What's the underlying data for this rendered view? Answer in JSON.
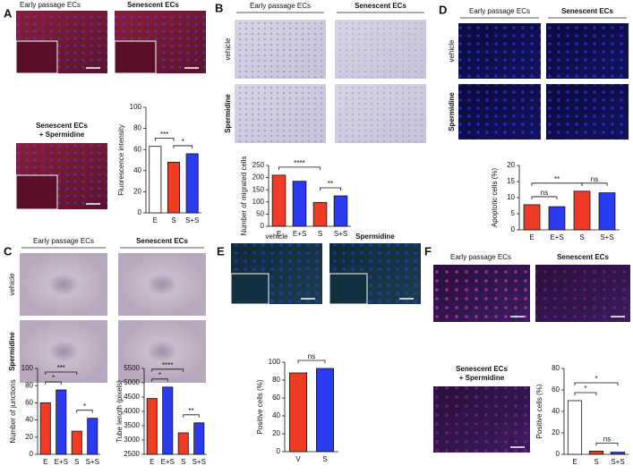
{
  "panels": [
    {
      "label": "A",
      "captions": [
        "Early passage ECs",
        "Senescent ECs",
        "Senescent ECs",
        "+ Spermidine"
      ]
    },
    {
      "label": "B",
      "columns": [
        "Early passage ECs",
        "Senescent ECs"
      ],
      "rows": [
        "vehicle",
        "Spermidine"
      ]
    },
    {
      "label": "C",
      "columns": [
        "Early passage ECs",
        "Senescent ECs"
      ],
      "rows": [
        "vehicle",
        "Spermidine"
      ]
    },
    {
      "label": "D",
      "columns": [
        "Early passage ECs",
        "Senescent ECs"
      ],
      "rows": [
        "vehicle",
        "Spermidine"
      ]
    },
    {
      "label": "E",
      "columns": [
        "vehicle",
        "Spermidine"
      ]
    },
    {
      "label": "F",
      "captions": [
        "Early passage ECs",
        "Senescent ECs",
        "Senescent ECs",
        "+ Spermidine"
      ]
    }
  ],
  "chart_data": [
    {
      "type": "bar",
      "ylabel": "Fluorescence intensity",
      "categories": [
        "E",
        "S",
        "S+S"
      ],
      "values": [
        63,
        48,
        56
      ],
      "colors": [
        "#ffffff",
        "#f03c24",
        "#2b3cf0"
      ],
      "ylim": [
        0,
        100
      ],
      "yticks": [
        0,
        20,
        40,
        60,
        80,
        100
      ],
      "significance": [
        {
          "text": "***",
          "between": [
            "E",
            "S"
          ]
        },
        {
          "text": "*",
          "between": [
            "S",
            "S+S"
          ]
        }
      ]
    },
    {
      "type": "bar",
      "ylabel": "Number of migrated cells",
      "categories": [
        "E",
        "E+S",
        "S",
        "S+S"
      ],
      "values": [
        210,
        185,
        98,
        125
      ],
      "colors": [
        "#f03c24",
        "#2b3cf0",
        "#f03c24",
        "#2b3cf0"
      ],
      "ylim": [
        0,
        250
      ],
      "yticks": [
        0,
        50,
        100,
        150,
        200,
        250
      ],
      "significance": [
        {
          "text": "****",
          "between": [
            "E",
            "S"
          ]
        },
        {
          "text": "**",
          "between": [
            "S",
            "S+S"
          ]
        }
      ]
    },
    {
      "type": "bar",
      "ylabel": "Number of junctions",
      "categories": [
        "E",
        "E+S",
        "S",
        "S+S"
      ],
      "values": [
        60,
        75,
        27,
        42
      ],
      "colors": [
        "#f03c24",
        "#2b3cf0",
        "#f03c24",
        "#2b3cf0"
      ],
      "ylim": [
        0,
        100
      ],
      "yticks": [
        0,
        20,
        40,
        60,
        80,
        100
      ],
      "significance": [
        {
          "text": "***",
          "between": [
            "E",
            "S"
          ]
        },
        {
          "text": "*",
          "between": [
            "E",
            "E+S"
          ]
        },
        {
          "text": "*",
          "between": [
            "S",
            "S+S"
          ]
        }
      ]
    },
    {
      "type": "bar",
      "ylabel": "Tube length (pixels)",
      "categories": [
        "E",
        "E+S",
        "S",
        "S+S"
      ],
      "values": [
        4450,
        4850,
        3250,
        3600
      ],
      "colors": [
        "#f03c24",
        "#2b3cf0",
        "#f03c24",
        "#2b3cf0"
      ],
      "ylim": [
        2500,
        5500
      ],
      "yticks": [
        2500,
        3000,
        3500,
        4000,
        4500,
        5000,
        5500
      ],
      "significance": [
        {
          "text": "****",
          "between": [
            "E",
            "S"
          ]
        },
        {
          "text": "*",
          "between": [
            "E",
            "E+S"
          ]
        },
        {
          "text": "**",
          "between": [
            "S",
            "S+S"
          ]
        }
      ]
    },
    {
      "type": "bar",
      "ylabel": "Apoptotic cells (%)",
      "categories": [
        "E",
        "E+S",
        "S",
        "S+S"
      ],
      "values": [
        7.8,
        7.2,
        12,
        11.5
      ],
      "colors": [
        "#f03c24",
        "#2b3cf0",
        "#f03c24",
        "#2b3cf0"
      ],
      "ylim": [
        0,
        20
      ],
      "yticks": [
        0,
        5,
        10,
        15,
        20
      ],
      "significance": [
        {
          "text": "**",
          "between": [
            "E",
            "S"
          ]
        },
        {
          "text": "ns",
          "between": [
            "E",
            "E+S"
          ]
        },
        {
          "text": "ns",
          "between": [
            "S",
            "S+S"
          ]
        }
      ]
    },
    {
      "type": "bar",
      "ylabel": "Positive cells (%)",
      "categories": [
        "V",
        "S"
      ],
      "values": [
        88,
        93
      ],
      "colors": [
        "#f03c24",
        "#2b3cf0"
      ],
      "ylim": [
        0,
        100
      ],
      "yticks": [
        0,
        20,
        40,
        60,
        80,
        100
      ],
      "significance": [
        {
          "text": "ns",
          "between": [
            "V",
            "S"
          ]
        }
      ]
    },
    {
      "type": "bar",
      "ylabel": "Positive cells (%)",
      "categories": [
        "E",
        "S",
        "S+S"
      ],
      "values": [
        50,
        3,
        2
      ],
      "colors": [
        "#ffffff",
        "#f03c24",
        "#2b3cf0"
      ],
      "ylim": [
        0,
        80
      ],
      "yticks": [
        0,
        20,
        40,
        60,
        80
      ],
      "significance": [
        {
          "text": "*",
          "between": [
            "E",
            "S+S"
          ]
        },
        {
          "text": "*",
          "between": [
            "E",
            "S"
          ]
        },
        {
          "text": "ns",
          "between": [
            "S",
            "S+S"
          ]
        }
      ]
    }
  ]
}
